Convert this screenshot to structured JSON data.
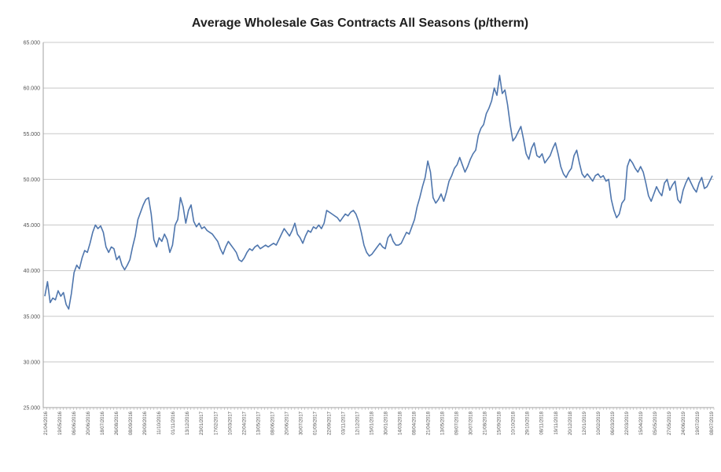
{
  "chart_data": {
    "type": "line",
    "title": "Average Wholesale Gas Contracts All Seasons (p/therm)",
    "xlabel": "",
    "ylabel": "",
    "ylim": [
      25,
      65
    ],
    "yticks": [
      "25.000",
      "30.000",
      "35.000",
      "40.000",
      "45.000",
      "50.000",
      "55.000",
      "60.000",
      "65.000"
    ],
    "xtick_labels": [
      "21/04/2016",
      "19/05/2016",
      "06/06/2016",
      "20/06/2016",
      "18/07/2016",
      "26/08/2016",
      "08/09/2016",
      "29/09/2016",
      "11/10/2016",
      "01/11/2016",
      "13/12/2016",
      "23/01/2017",
      "17/02/2017",
      "10/03/2017",
      "22/04/2017",
      "13/05/2017",
      "08/06/2017",
      "20/06/2017",
      "30/07/2017",
      "01/09/2017",
      "22/09/2017",
      "03/11/2017",
      "12/12/2017",
      "15/01/2018",
      "30/01/2018",
      "14/03/2018",
      "08/04/2018",
      "21/04/2018",
      "13/05/2018",
      "09/07/2018",
      "30/07/2018",
      "21/08/2018",
      "15/09/2018",
      "10/10/2018",
      "29/10/2018",
      "08/11/2018",
      "19/11/2018",
      "20/12/2018",
      "12/01/2019",
      "10/02/2019",
      "06/03/2019",
      "22/03/2019",
      "15/04/2019",
      "05/05/2019",
      "27/05/2019",
      "24/06/2019",
      "19/07/2019",
      "08/07/2019"
    ],
    "grid": true,
    "legend": "none",
    "color": "#4f76ad",
    "series": [
      {
        "values": [
          37.2,
          38.8,
          36.5,
          37.0,
          36.8,
          37.8,
          37.2,
          37.6,
          36.3,
          35.8,
          37.5,
          39.8,
          40.6,
          40.2,
          41.4,
          42.2,
          42.0,
          43.0,
          44.2,
          45.0,
          44.6,
          44.9,
          44.2,
          42.6,
          42.0,
          42.6,
          42.4,
          41.2,
          41.6,
          40.6,
          40.1,
          40.6,
          41.2,
          42.6,
          43.8,
          45.6,
          46.4,
          47.2,
          47.8,
          48.0,
          46.2,
          43.4,
          42.6,
          43.6,
          43.2,
          44.0,
          43.4,
          42.0,
          42.8,
          45.0,
          45.6,
          48.0,
          47.0,
          45.2,
          46.6,
          47.2,
          45.4,
          44.8,
          45.2,
          44.6,
          44.8,
          44.4,
          44.2,
          44.0,
          43.6,
          43.2,
          42.4,
          41.8,
          42.6,
          43.2,
          42.8,
          42.4,
          42.0,
          41.2,
          41.0,
          41.4,
          42.0,
          42.4,
          42.2,
          42.6,
          42.8,
          42.4,
          42.6,
          42.8,
          42.6,
          42.8,
          43.0,
          42.8,
          43.4,
          44.0,
          44.6,
          44.2,
          43.8,
          44.4,
          45.2,
          44.0,
          43.6,
          43.0,
          43.8,
          44.4,
          44.2,
          44.8,
          44.6,
          45.0,
          44.6,
          45.2,
          46.6,
          46.4,
          46.2,
          46.0,
          45.8,
          45.4,
          45.8,
          46.2,
          46.0,
          46.4,
          46.6,
          46.2,
          45.4,
          44.2,
          42.8,
          42.0,
          41.6,
          41.8,
          42.2,
          42.6,
          43.0,
          42.6,
          42.4,
          43.6,
          44.0,
          43.2,
          42.8,
          42.8,
          43.0,
          43.6,
          44.2,
          44.0,
          44.8,
          45.6,
          47.0,
          48.0,
          49.2,
          50.2,
          52.0,
          50.8,
          48.0,
          47.4,
          47.8,
          48.4,
          47.6,
          48.6,
          49.8,
          50.4,
          51.2,
          51.6,
          52.4,
          51.6,
          50.8,
          51.4,
          52.2,
          52.8,
          53.2,
          54.8,
          55.6,
          56.0,
          57.2,
          57.8,
          58.6,
          60.0,
          59.2,
          61.4,
          59.4,
          59.8,
          58.2,
          56.0,
          54.2,
          54.6,
          55.2,
          55.8,
          54.4,
          52.8,
          52.2,
          53.4,
          54.0,
          52.6,
          52.4,
          52.8,
          51.8,
          52.2,
          52.6,
          53.4,
          54.0,
          52.8,
          51.4,
          50.6,
          50.2,
          50.8,
          51.2,
          52.6,
          53.2,
          51.8,
          50.6,
          50.2,
          50.6,
          50.2,
          49.8,
          50.4,
          50.6,
          50.2,
          50.4,
          49.8,
          50.0,
          47.8,
          46.6,
          45.8,
          46.2,
          47.4,
          47.8,
          51.4,
          52.2,
          51.8,
          51.2,
          50.8,
          51.4,
          50.8,
          49.6,
          48.2,
          47.6,
          48.4,
          49.2,
          48.6,
          48.2,
          49.6,
          50.0,
          48.8,
          49.4,
          49.8,
          47.8,
          47.4,
          48.8,
          49.6,
          50.2,
          49.6,
          49.0,
          48.6,
          49.6,
          50.2,
          49.0,
          49.2,
          49.8,
          50.4
        ]
      }
    ]
  }
}
